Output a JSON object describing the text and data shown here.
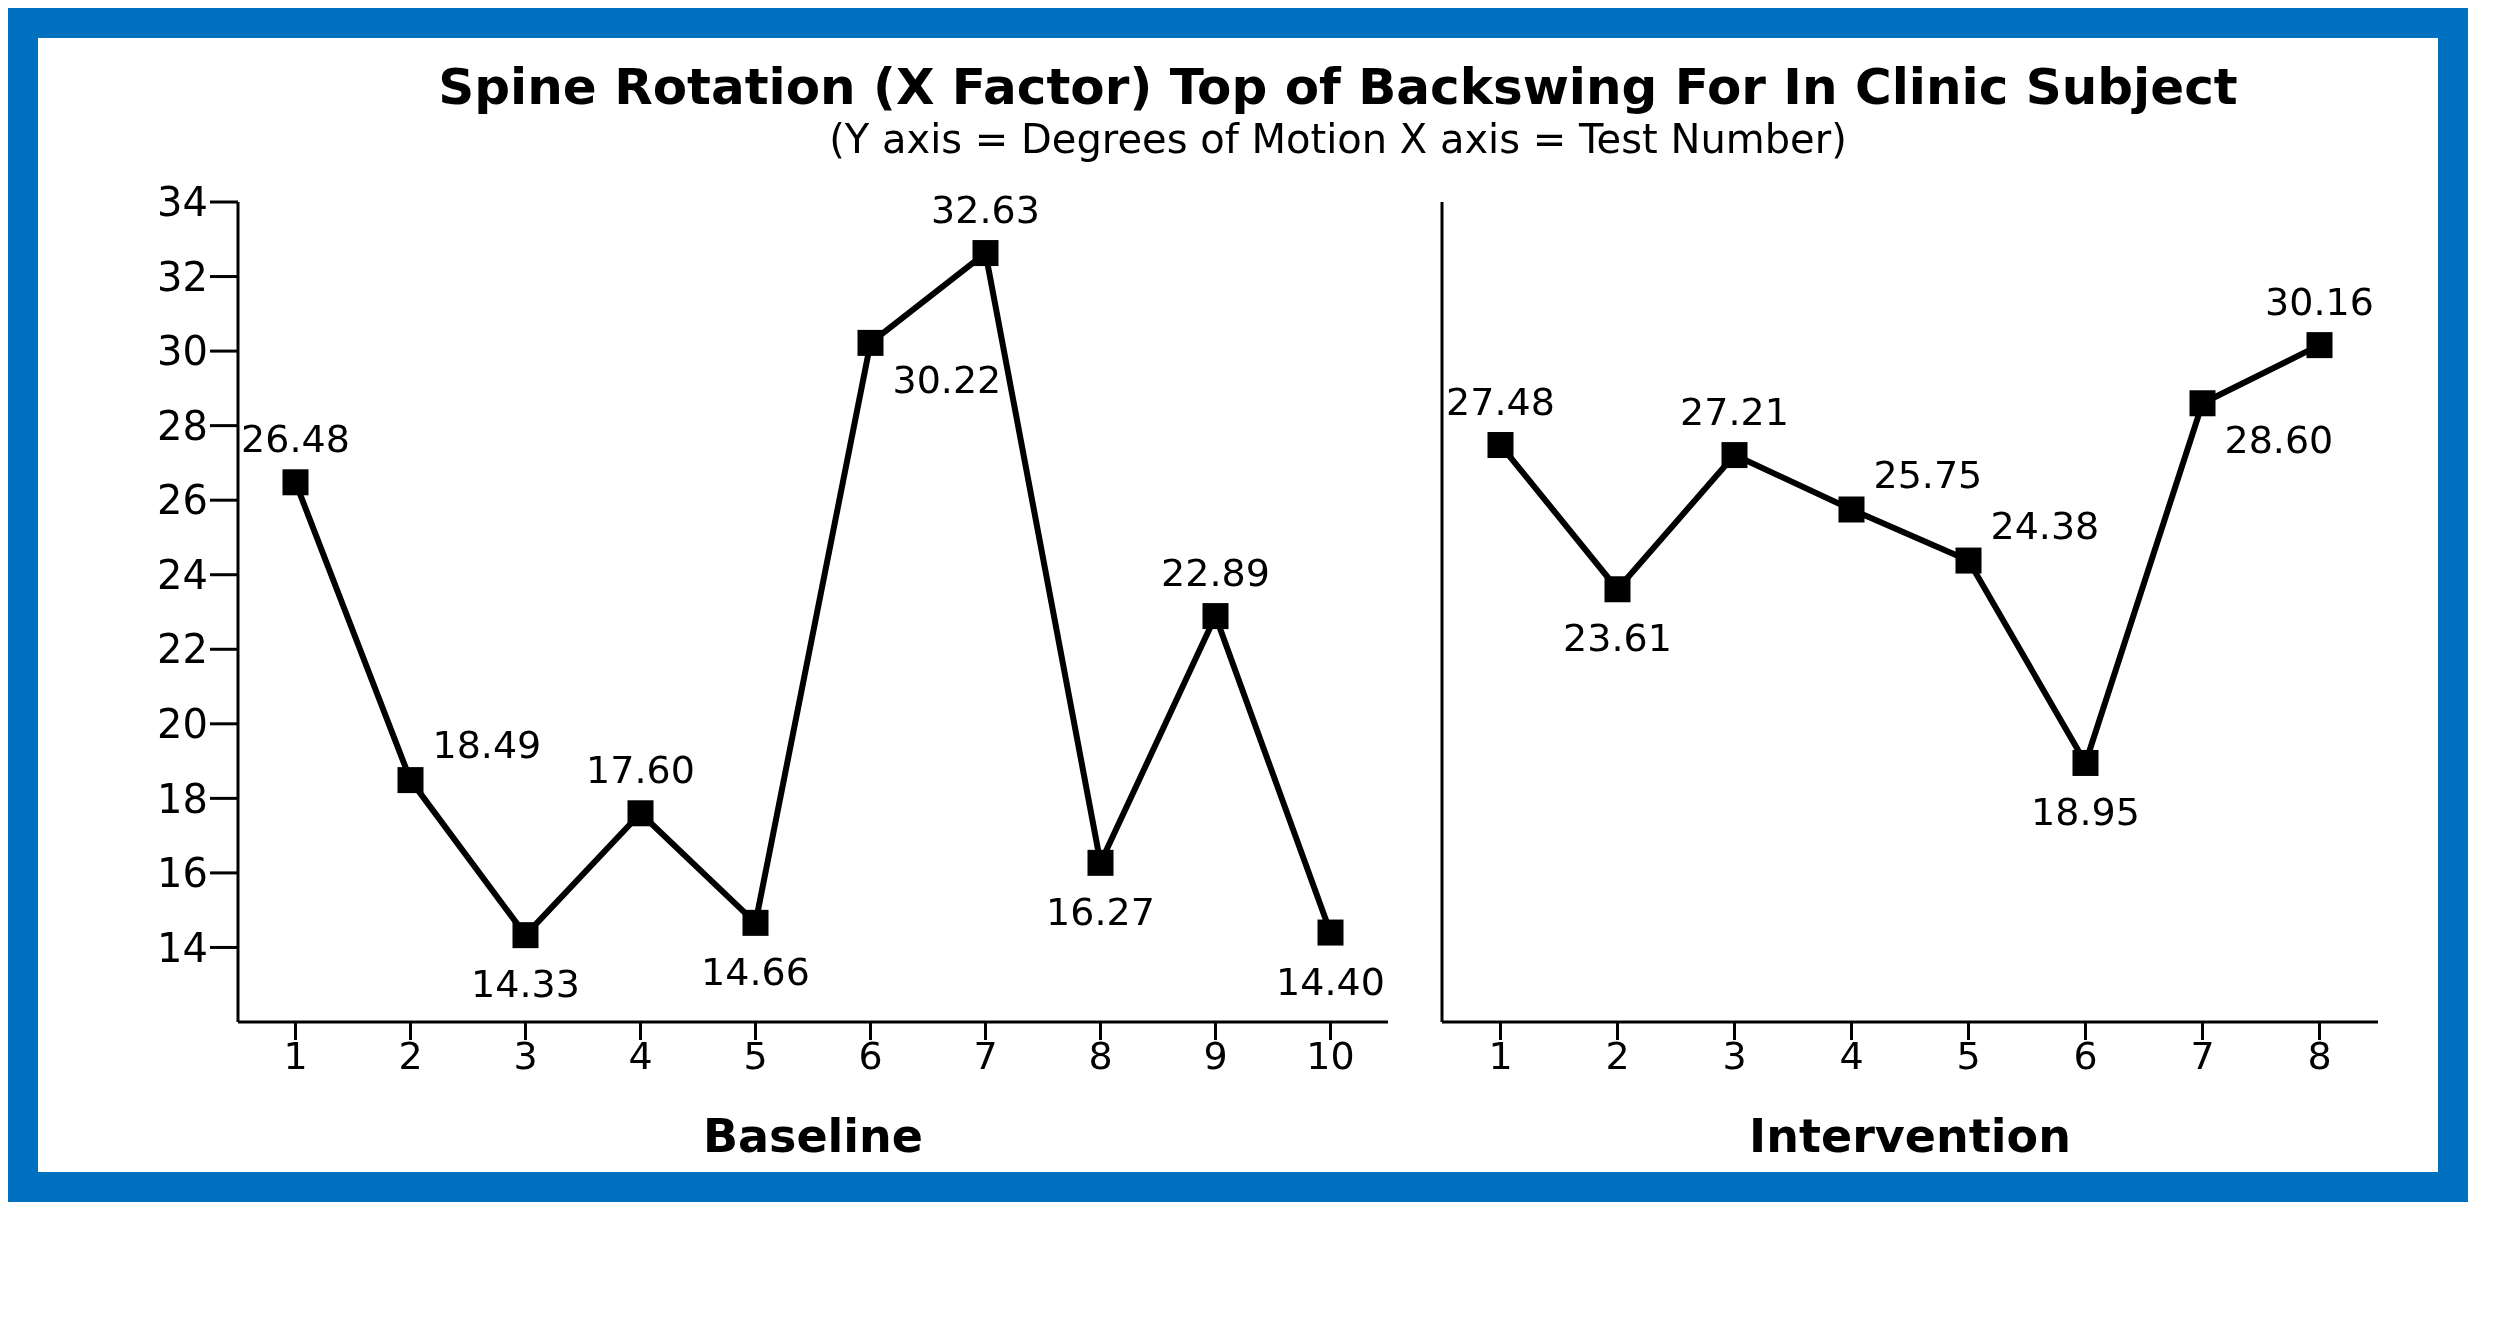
{
  "chart_data": [
    {
      "type": "line",
      "title": "Spine Rotation (X Factor) Top of Backswing For In Clinic Subject",
      "subtitle": "(Y axis = Degrees of Motion   X axis = Test Number)",
      "xlabel": "Baseline",
      "categories": [
        "1",
        "2",
        "3",
        "4",
        "5",
        "6",
        "7",
        "8",
        "9",
        "10"
      ],
      "series": [
        {
          "color": "#000000",
          "values": [
            26.48,
            18.49,
            14.33,
            17.6,
            14.66,
            30.22,
            32.63,
            16.27,
            22.89,
            14.4
          ],
          "value_labels": [
            "26.48",
            "18.49",
            "14.33",
            "17.60",
            "14.66",
            "30.22",
            "32.63",
            "16.27",
            "22.89",
            "14.40"
          ]
        }
      ],
      "ylim": [
        12,
        34
      ],
      "yticks": [
        14,
        16,
        18,
        20,
        22,
        24,
        26,
        28,
        30,
        32,
        34
      ],
      "marker": "square",
      "line_style": "solid",
      "data_labels": true
    },
    {
      "type": "line",
      "xlabel": "Intervention",
      "categories": [
        "1",
        "2",
        "3",
        "4",
        "5",
        "6",
        "7",
        "8"
      ],
      "series": [
        {
          "color": "#000000",
          "values": [
            27.48,
            23.61,
            27.21,
            25.75,
            24.38,
            18.95,
            28.6,
            30.16
          ],
          "value_labels": [
            "27.48",
            "23.61",
            "27.21",
            "25.75",
            "24.38",
            "18.95",
            "28.60",
            "30.16"
          ]
        }
      ],
      "ylim": [
        12,
        34
      ],
      "yticks": [
        14,
        16,
        18,
        20,
        22,
        24,
        26,
        28,
        30,
        32,
        34
      ],
      "tick_labels": "x",
      "marker": "square",
      "line_style": "solid",
      "data_labels": true
    }
  ]
}
